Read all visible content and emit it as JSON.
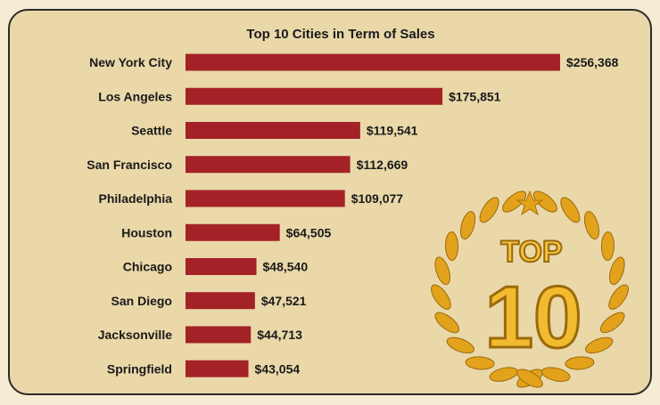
{
  "colors": {
    "panel_background": "#ead8a9",
    "page_background": "#f6ecd3",
    "bar": "#a32127",
    "text": "#1a1a1a",
    "badge_gold": "#e5a81a"
  },
  "badge": {
    "top_text": "TOP",
    "number_text": "10"
  },
  "chart_data": {
    "type": "bar",
    "orientation": "horizontal",
    "title": "Top 10 Cities in Term of Sales",
    "categories": [
      "New York City",
      "Los Angeles",
      "Seattle",
      "San Francisco",
      "Philadelphia",
      "Houston",
      "Chicago",
      "San Diego",
      "Jacksonville",
      "Springfield"
    ],
    "values": [
      256368,
      175851,
      119541,
      112669,
      109077,
      64505,
      48540,
      47521,
      44713,
      43054
    ],
    "data_labels": [
      "$256,368",
      "$175,851",
      "$119,541",
      "$112,669",
      "$109,077",
      "$64,505",
      "$48,540",
      "$47,521",
      "$44,713",
      "$43,054"
    ],
    "xlabel": "",
    "ylabel": "",
    "xlim": [
      0,
      256368
    ],
    "grid": false,
    "legend": "none"
  }
}
